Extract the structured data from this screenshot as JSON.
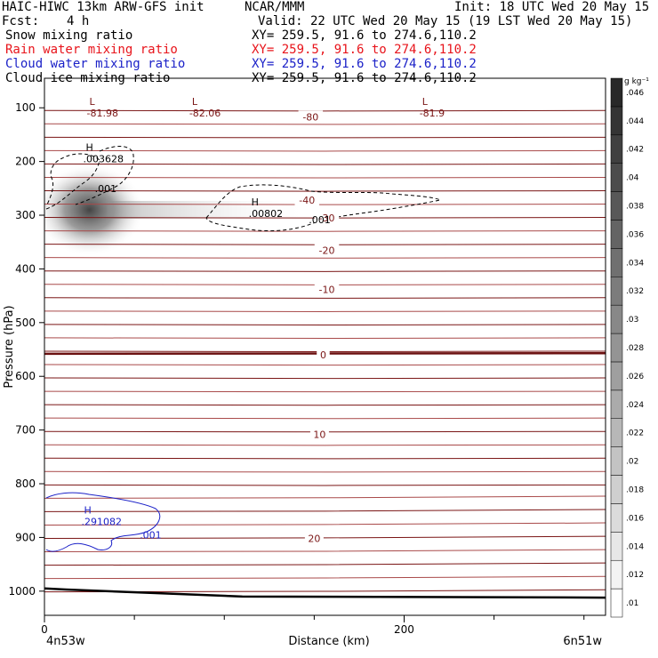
{
  "header": {
    "title": "HAIC-HIWC 13km ARW-GFS init",
    "org": "NCAR/MMM",
    "init": "Init: 18 UTC Wed 20 May 15",
    "fcst_label": "Fcst:",
    "fcst_value": "4 h",
    "valid": "Valid: 22 UTC Wed 20 May 15 (19 LST Wed 20 May 15)"
  },
  "fields": [
    {
      "name": "Snow mixing ratio",
      "xy": "XY= 259.5, 91.6 to 274.6,110.2",
      "color": "#000000"
    },
    {
      "name": "Rain water mixing ratio",
      "xy": "XY= 259.5, 91.6 to 274.6,110.2",
      "color": "#e8141b"
    },
    {
      "name": "Cloud water mixing ratio",
      "xy": "XY= 259.5, 91.6 to 274.6,110.2",
      "color": "#1c22c8"
    },
    {
      "name": "Cloud ice mixing ratio",
      "xy": "XY= 259.5, 91.6 to 274.6,110.2",
      "color": "#000000"
    }
  ],
  "chart_data": {
    "type": "heatmap",
    "xlabel": "Distance (km)",
    "ylabel": "Pressure (hPa)",
    "x_ticks": [
      0,
      200
    ],
    "x_minor_ticks": [
      50,
      100,
      150,
      250,
      300
    ],
    "xlim": [
      0,
      312
    ],
    "y_ticks": [
      100,
      200,
      300,
      400,
      500,
      600,
      700,
      800,
      900,
      1000
    ],
    "ylim": [
      1045,
      45
    ],
    "endpoint_left": "4n53w",
    "endpoint_right": "6n51w",
    "colorbar": {
      "unit": "g kg⁻¹",
      "levels": [
        0.01,
        0.012,
        0.014,
        0.016,
        0.018,
        0.02,
        0.022,
        0.024,
        0.026,
        0.028,
        0.03,
        0.032,
        0.034,
        0.036,
        0.038,
        0.04,
        0.042,
        0.044,
        0.046
      ],
      "labels": [
        ".01",
        ".012",
        ".014",
        ".016",
        ".018",
        ".02",
        ".022",
        ".024",
        ".026",
        ".028",
        ".03",
        ".032",
        ".034",
        ".036",
        ".038",
        ".04",
        ".042",
        ".044",
        ".046"
      ]
    },
    "temperature_contour_labels": [
      {
        "value": "-80",
        "x": 148,
        "p": 117
      },
      {
        "value": "-40",
        "x": 146,
        "p": 272
      },
      {
        "value": "-30",
        "x": 157,
        "p": 305
      },
      {
        "value": "-20",
        "x": 157,
        "p": 365
      },
      {
        "value": "-10",
        "x": 157,
        "p": 438
      },
      {
        "value": "0",
        "x": 155,
        "p": 560
      },
      {
        "value": "10",
        "x": 153,
        "p": 708
      },
      {
        "value": "20",
        "x": 150,
        "p": 902
      }
    ],
    "extrema_labels": [
      {
        "type": "L",
        "value": "-81.98",
        "x": 25,
        "p": 105,
        "color": "#7a1515"
      },
      {
        "type": "L",
        "value": "-82.06",
        "x": 82,
        "p": 105,
        "color": "#7a1515"
      },
      {
        "type": "L",
        "value": "-81.9",
        "x": 210,
        "p": 105,
        "color": "#7a1515"
      },
      {
        "type": "H",
        "value": ".003628",
        "x": 23,
        "p": 190,
        "color": "#000000"
      },
      {
        "type": "H",
        "value": ".00802",
        "x": 115,
        "p": 292,
        "color": "#000000"
      },
      {
        "type": "H",
        "value": ".291082",
        "x": 22,
        "p": 865,
        "color": "#1c22c8"
      }
    ],
    "contour_value_labels": [
      {
        "value": ".001",
        "x": 28,
        "p": 250,
        "color": "#000000"
      },
      {
        "value": ".001",
        "x": 147,
        "p": 308,
        "color": "#000000"
      },
      {
        "value": ".001",
        "x": 53,
        "p": 895,
        "color": "#1c22c8"
      }
    ],
    "freezing_level_hpa": 558,
    "surface_line_hpa": [
      995,
      997,
      1010,
      1012
    ],
    "snow_maximum": {
      "x": 25,
      "p": 290,
      "value_approx": 0.03
    }
  }
}
